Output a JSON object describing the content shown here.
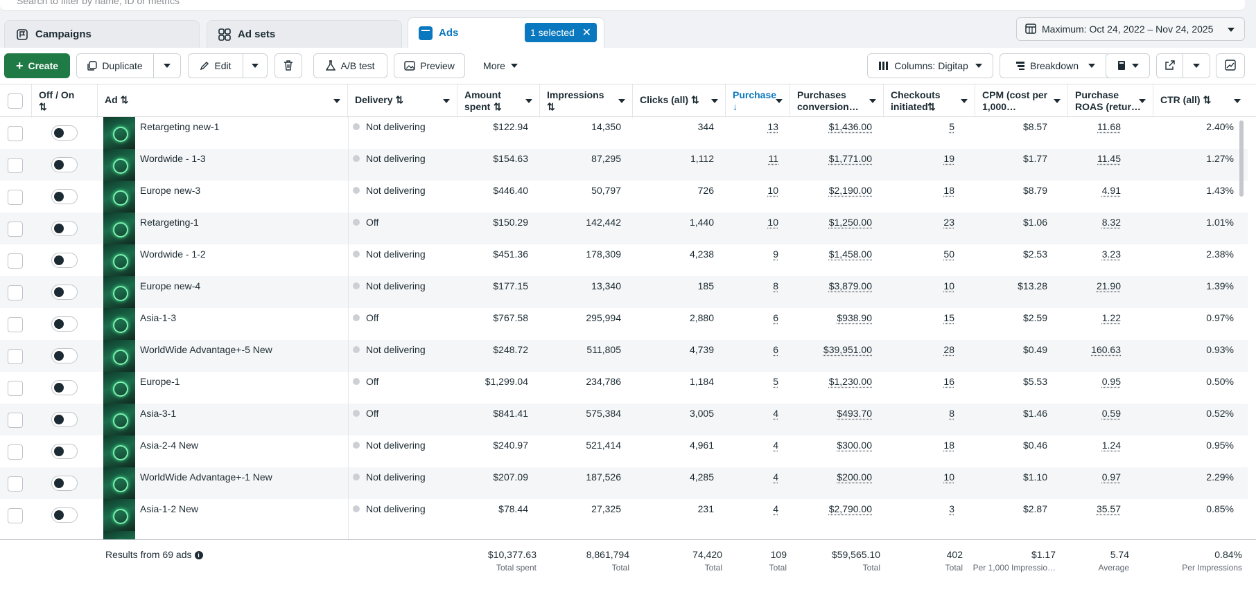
{
  "search": {
    "placeholder": "Search to filter by name, ID or metrics"
  },
  "tabs": [
    {
      "label": "Campaigns",
      "icon": "flag-icon"
    },
    {
      "label": "Ad sets",
      "icon": "grid-icon"
    },
    {
      "label": "Ads",
      "icon": "ad-icon"
    }
  ],
  "selection": {
    "label": "1 selected"
  },
  "date_range": {
    "label": "Maximum: Oct 24, 2022 – Nov 24, 2025"
  },
  "toolbar": {
    "create": "Create",
    "duplicate": "Duplicate",
    "edit": "Edit",
    "ab_test": "A/B test",
    "preview": "Preview",
    "more": "More",
    "columns": "Columns: Digitap",
    "breakdown": "Breakdown"
  },
  "columns": {
    "off_on": "Off / On",
    "ad": "Ad",
    "delivery": "Delivery",
    "amount_spent": "Amount spent",
    "impressions": "Impressions",
    "clicks": "Clicks (all)",
    "purchases": "Purchase",
    "purchases_value": "Purchases conversion…",
    "checkouts": "Checkouts initiated",
    "cpm": "CPM (cost per 1,000…",
    "roas": "Purchase ROAS (retur…",
    "ctr": "CTR (all)"
  },
  "rows": [
    {
      "name": "Retargeting new-1",
      "delivery": "Not delivering",
      "spent": "$122.94",
      "impressions": "14,350",
      "clicks": "344",
      "purchases": "13",
      "value": "$1,436.00",
      "checkouts": "5",
      "cpm": "$8.57",
      "roas": "11.68",
      "ctr": "2.40%"
    },
    {
      "name": "Wordwide - 1-3",
      "delivery": "Not delivering",
      "spent": "$154.63",
      "impressions": "87,295",
      "clicks": "1,112",
      "purchases": "11",
      "value": "$1,771.00",
      "checkouts": "19",
      "cpm": "$1.77",
      "roas": "11.45",
      "ctr": "1.27%"
    },
    {
      "name": "Europe new-3",
      "delivery": "Not delivering",
      "spent": "$446.40",
      "impressions": "50,797",
      "clicks": "726",
      "purchases": "10",
      "value": "$2,190.00",
      "checkouts": "18",
      "cpm": "$8.79",
      "roas": "4.91",
      "ctr": "1.43%"
    },
    {
      "name": "Retargeting-1",
      "delivery": "Off",
      "spent": "$150.29",
      "impressions": "142,442",
      "clicks": "1,440",
      "purchases": "10",
      "value": "$1,250.00",
      "checkouts": "23",
      "cpm": "$1.06",
      "roas": "8.32",
      "ctr": "1.01%"
    },
    {
      "name": "Wordwide - 1-2",
      "delivery": "Not delivering",
      "spent": "$451.36",
      "impressions": "178,309",
      "clicks": "4,238",
      "purchases": "9",
      "value": "$1,458.00",
      "checkouts": "50",
      "cpm": "$2.53",
      "roas": "3.23",
      "ctr": "2.38%"
    },
    {
      "name": "Europe new-4",
      "delivery": "Not delivering",
      "spent": "$177.15",
      "impressions": "13,340",
      "clicks": "185",
      "purchases": "8",
      "value": "$3,879.00",
      "checkouts": "10",
      "cpm": "$13.28",
      "roas": "21.90",
      "ctr": "1.39%"
    },
    {
      "name": "Asia-1-3",
      "delivery": "Off",
      "spent": "$767.58",
      "impressions": "295,994",
      "clicks": "2,880",
      "purchases": "6",
      "value": "$938.90",
      "checkouts": "15",
      "cpm": "$2.59",
      "roas": "1.22",
      "ctr": "0.97%"
    },
    {
      "name": "WorldWide Advantage+-5 New",
      "delivery": "Not delivering",
      "spent": "$248.72",
      "impressions": "511,805",
      "clicks": "4,739",
      "purchases": "6",
      "value": "$39,951.00",
      "checkouts": "28",
      "cpm": "$0.49",
      "roas": "160.63",
      "ctr": "0.93%"
    },
    {
      "name": "Europe-1",
      "delivery": "Off",
      "spent": "$1,299.04",
      "impressions": "234,786",
      "clicks": "1,184",
      "purchases": "5",
      "value": "$1,230.00",
      "checkouts": "16",
      "cpm": "$5.53",
      "roas": "0.95",
      "ctr": "0.50%"
    },
    {
      "name": "Asia-3-1",
      "delivery": "Off",
      "spent": "$841.41",
      "impressions": "575,384",
      "clicks": "3,005",
      "purchases": "4",
      "value": "$493.70",
      "checkouts": "8",
      "cpm": "$1.46",
      "roas": "0.59",
      "ctr": "0.52%"
    },
    {
      "name": "Asia-2-4 New",
      "delivery": "Not delivering",
      "spent": "$240.97",
      "impressions": "521,414",
      "clicks": "4,961",
      "purchases": "4",
      "value": "$300.00",
      "checkouts": "18",
      "cpm": "$0.46",
      "roas": "1.24",
      "ctr": "0.95%"
    },
    {
      "name": "WorldWide Advantage+-1 New",
      "delivery": "Not delivering",
      "spent": "$207.09",
      "impressions": "187,526",
      "clicks": "4,285",
      "purchases": "4",
      "value": "$200.00",
      "checkouts": "10",
      "cpm": "$1.10",
      "roas": "0.97",
      "ctr": "2.29%"
    },
    {
      "name": "Asia-1-2 New",
      "delivery": "Not delivering",
      "spent": "$78.44",
      "impressions": "27,325",
      "clicks": "231",
      "purchases": "4",
      "value": "$2,790.00",
      "checkouts": "3",
      "cpm": "$2.87",
      "roas": "35.57",
      "ctr": "0.85%"
    }
  ],
  "totals": {
    "label": "Results from 69 ads",
    "spent": "$10,377.63",
    "spent_sub": "Total spent",
    "impressions": "8,861,794",
    "impressions_sub": "Total",
    "clicks": "74,420",
    "clicks_sub": "Total",
    "purchases": "109",
    "purchases_sub": "Total",
    "value": "$59,565.10",
    "value_sub": "Total",
    "checkouts": "402",
    "checkouts_sub": "Total",
    "cpm": "$1.17",
    "cpm_sub": "Per 1,000 Impressio…",
    "roas": "5.74",
    "roas_sub": "Average",
    "ctr": "0.84%",
    "ctr_sub": "Per Impressions"
  },
  "colors": {
    "accent": "#0a78be",
    "create_green": "#1f7a45",
    "text": "#1c2b33"
  }
}
